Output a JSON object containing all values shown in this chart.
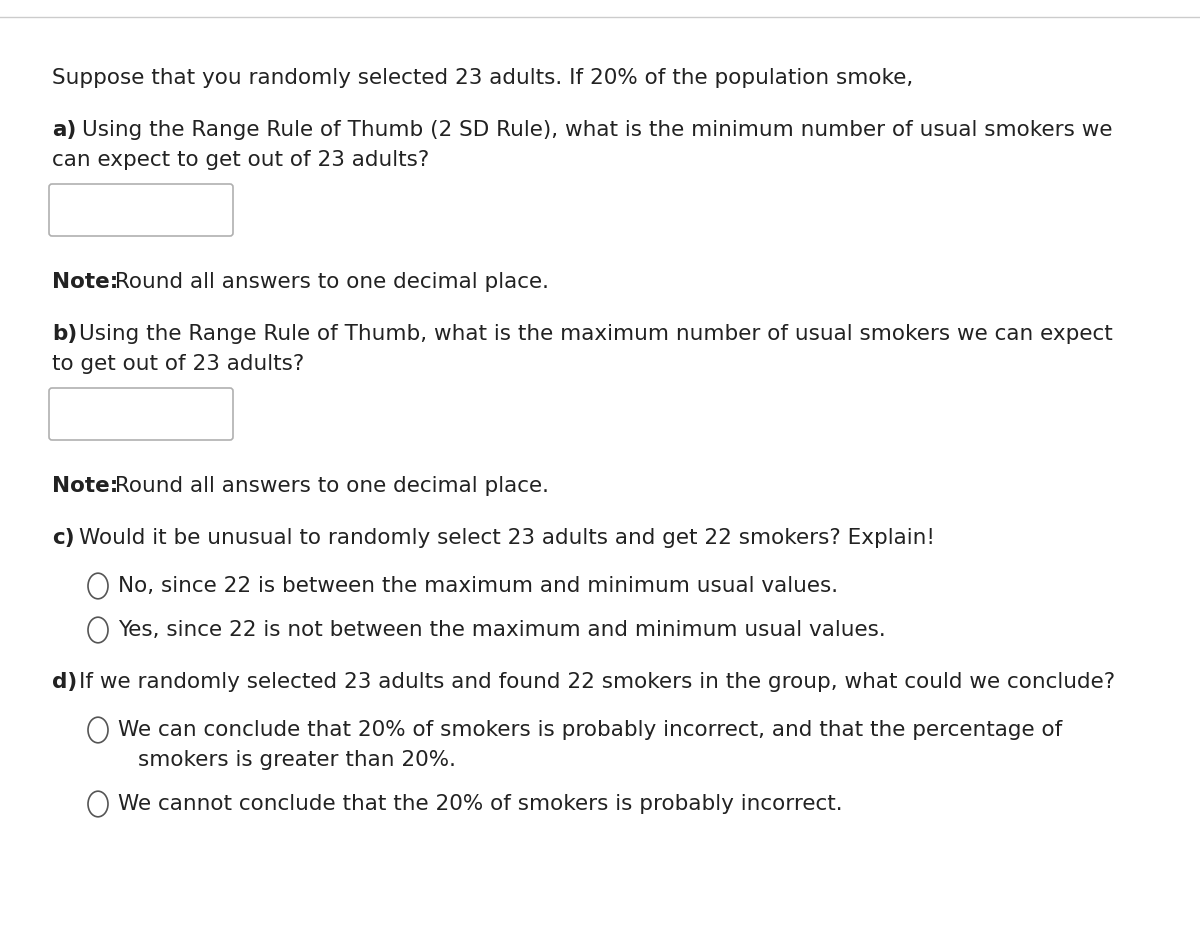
{
  "bg_color": "#ffffff",
  "top_line_color": "#cccccc",
  "text_color": "#222222",
  "intro_text": "Suppose that you randomly selected 23 adults. If 20% of the population smoke,",
  "q_a_bold": "a)",
  "q_a_line1": "Using the Range Rule of Thumb (2 SD Rule), what is the minimum number of usual smokers we",
  "q_a_line2": "can expect to get out of 23 adults?",
  "note_bold": "Note:",
  "note_text": " Round all answers to one decimal place.",
  "q_b_bold": "b)",
  "q_b_line1": "Using the Range Rule of Thumb, what is the maximum number of usual smokers we can expect",
  "q_b_line2": "to get out of 23 adults?",
  "q_c_bold": "c)",
  "q_c_text": "Would it be unusual to randomly select 23 adults and get 22 smokers? Explain!",
  "c_option1": "No, since 22 is between the maximum and minimum usual values.",
  "c_option2": "Yes, since 22 is not between the maximum and minimum usual values.",
  "q_d_bold": "d)",
  "q_d_text": "If we randomly selected 23 adults and found 22 smokers in the group, what could we conclude?",
  "d_option1_line1": "We can conclude that 20% of smokers is probably incorrect, and that the percentage of",
  "d_option1_line2": "smokers is greater than 20%.",
  "d_option2": "We cannot conclude that the 20% of smokers is probably incorrect.",
  "box_edge_color": "#b0b0b0",
  "circle_edge_color": "#555555",
  "font_size": 15.5
}
